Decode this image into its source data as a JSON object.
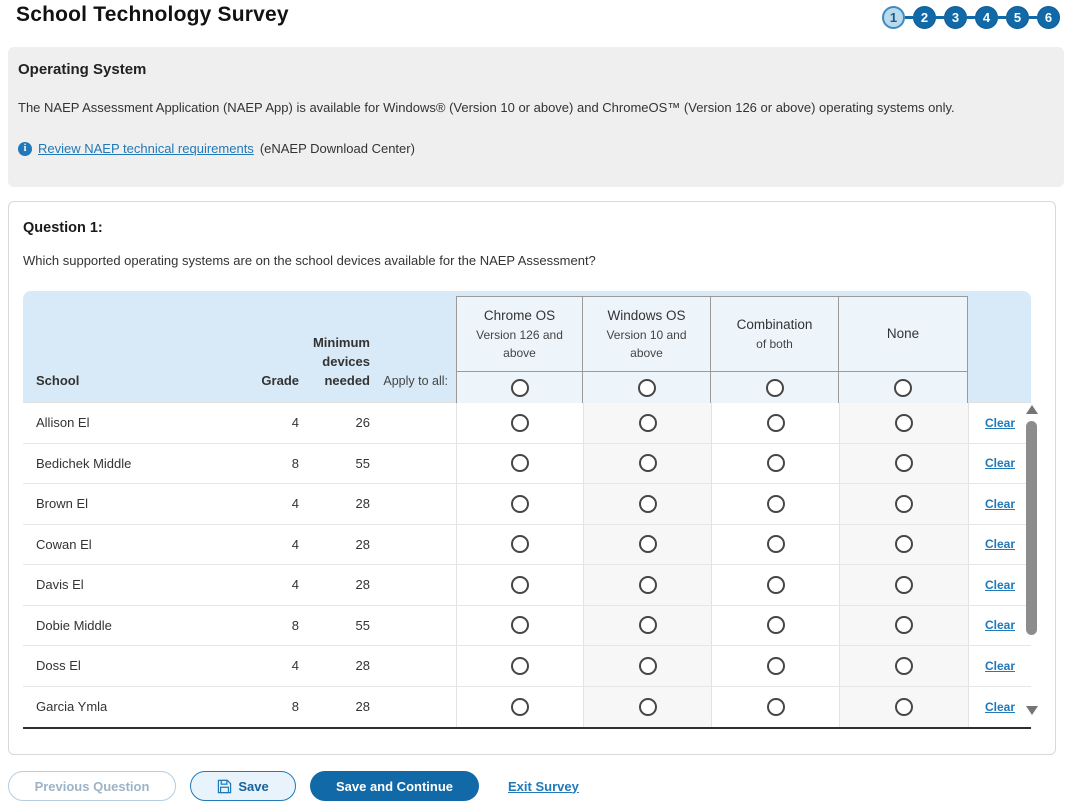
{
  "page": {
    "title": "School Technology Survey"
  },
  "stepper": {
    "steps": [
      {
        "label": "1",
        "current": true
      },
      {
        "label": "2",
        "current": false
      },
      {
        "label": "3",
        "current": false
      },
      {
        "label": "4",
        "current": false
      },
      {
        "label": "5",
        "current": false
      },
      {
        "label": "6",
        "current": false
      }
    ]
  },
  "os_section": {
    "heading": "Operating System",
    "description": "The NAEP Assessment Application (NAEP App) is available for Windows® (Version 10 or above) and ChromeOS™ (Version 126 or above) operating systems only.",
    "link_text": "Review NAEP technical requirements",
    "link_suffix": "(eNAEP Download Center)"
  },
  "question": {
    "heading": "Question 1:",
    "text": "Which supported operating systems are on the school devices available for the NAEP Assessment?"
  },
  "table": {
    "col_school": "School",
    "col_grade": "Grade",
    "col_devices": "Minimum devices needed",
    "col_apply": "Apply to all:",
    "os_options": [
      {
        "name": "Chrome OS",
        "sub": "Version 126 and above"
      },
      {
        "name": "Windows OS",
        "sub": "Version 10 and above"
      },
      {
        "name": "Combination",
        "sub": "of both"
      },
      {
        "name": "None",
        "sub": ""
      }
    ],
    "clear_label": "Clear",
    "rows": [
      {
        "school": "Allison El",
        "grade": "4",
        "devices": "26"
      },
      {
        "school": "Bedichek Middle",
        "grade": "8",
        "devices": "55"
      },
      {
        "school": "Brown El",
        "grade": "4",
        "devices": "28"
      },
      {
        "school": "Cowan El",
        "grade": "4",
        "devices": "28"
      },
      {
        "school": "Davis El",
        "grade": "4",
        "devices": "28"
      },
      {
        "school": "Dobie Middle",
        "grade": "8",
        "devices": "55"
      },
      {
        "school": "Doss El",
        "grade": "4",
        "devices": "28"
      },
      {
        "school": "Garcia Ymla",
        "grade": "8",
        "devices": "28"
      }
    ]
  },
  "footer": {
    "previous_label": "Previous Question",
    "save_label": "Save",
    "save_continue_label": "Save and Continue",
    "exit_label": "Exit Survey"
  },
  "colors": {
    "primary_blue": "#1269a8",
    "link_blue": "#2079b8",
    "header_light_blue": "#d8eaf7",
    "os_box_blue": "#edf5fb",
    "section_gray": "#f0efef",
    "current_step_fill": "#b9d9ec"
  }
}
